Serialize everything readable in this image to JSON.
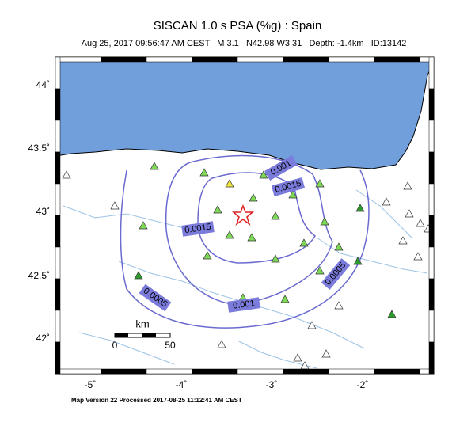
{
  "header": {
    "title": "SISCAN 1.0 s PSA (%g) : Spain",
    "subtitle": "Aug 25, 2017 09:56:47 AM CEST   M 3.1   N42.98 W3.31   Depth: -1.4km   ID:13142"
  },
  "map": {
    "lat_labels": [
      "44˚",
      "43.5˚",
      "43˚",
      "42.5˚",
      "42˚"
    ],
    "lon_labels": [
      "-5˚",
      "-4˚",
      "-3˚",
      "-2˚"
    ],
    "contour_labels": [
      "0.001",
      "0.0015",
      "0.0015",
      "0.0005",
      "0.001",
      "0.0005"
    ]
  },
  "scale": {
    "unit": "km",
    "labels": [
      "0",
      "50"
    ]
  },
  "footer": {
    "text": "Map Version 22 Processed 2017-08-25 11:12:41 AM CEST"
  }
}
